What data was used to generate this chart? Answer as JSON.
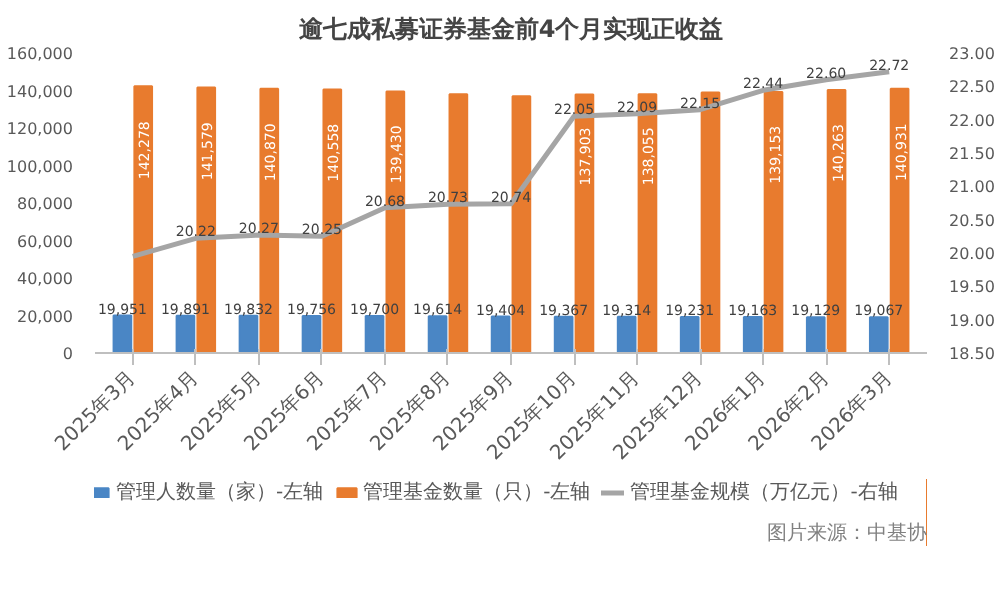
{
  "chart_data": {
    "type": "bar",
    "title": "逾七成私募证券基金前4个月实现正收益",
    "categories": [
      "2025年3月",
      "2025年4月",
      "2025年5月",
      "2025年6月",
      "2025年7月",
      "2025年8月",
      "2025年9月",
      "2025年10月",
      "2025年11月",
      "2025年12月",
      "2026年1月",
      "2026年2月",
      "2026年3月"
    ],
    "series": [
      {
        "name": "管理人数量（家）-左轴",
        "color": "#4a86c5",
        "values": [
          19951,
          19891,
          19832,
          19756,
          19700,
          19614,
          19404,
          19367,
          19314,
          19231,
          19163,
          19129,
          19067
        ],
        "value_labels": [
          "19,951",
          "19,891",
          "19,832",
          "19,756",
          "19,700",
          "19,614",
          "19,404",
          "19,367",
          "19,314",
          "19,231",
          "19,163",
          "19,129",
          "19,067"
        ]
      },
      {
        "name": "管理基金数量（只）-左轴",
        "color": "#e87b2e",
        "values": [
          142278,
          141579,
          140870,
          140558,
          139430,
          138000,
          137000,
          137903,
          138055,
          139000,
          139153,
          140263,
          140931
        ],
        "value_labels": [
          "142,278",
          "141,579",
          "140,870",
          "140,558",
          "139,430",
          null,
          null,
          "137,903",
          "138,055",
          null,
          "139,153",
          "140,263",
          "140,931"
        ]
      },
      {
        "name": "管理基金规模（万亿元）-右轴",
        "type": "line",
        "axis": "y2",
        "color": "#a5a5a5",
        "values": [
          19.95,
          20.22,
          20.27,
          20.25,
          20.68,
          20.73,
          20.74,
          22.05,
          22.09,
          22.15,
          22.44,
          22.6,
          22.72
        ],
        "value_labels": [
          null,
          "20.22",
          "20.27",
          "20.25",
          "20.68",
          "20.73",
          "20.74",
          "22.05",
          "22.09",
          "22.15",
          "22.44",
          "22.60",
          "22.72"
        ]
      }
    ],
    "ylim": [
      0,
      160000
    ],
    "yticks": [
      {
        "value": 0,
        "label": "0"
      },
      {
        "value": 20000,
        "label": "20,000"
      },
      {
        "value": 40000,
        "label": "40,000"
      },
      {
        "value": 60000,
        "label": "60,000"
      },
      {
        "value": 80000,
        "label": "80,000"
      },
      {
        "value": 100000,
        "label": "100,000"
      },
      {
        "value": 120000,
        "label": "120,000"
      },
      {
        "value": 140000,
        "label": "140,000"
      },
      {
        "value": 160000,
        "label": "160,000"
      }
    ],
    "y2lim": [
      18.5,
      23.0
    ],
    "y2ticks": [
      {
        "value": 18.5,
        "label": "18.50"
      },
      {
        "value": 19.0,
        "label": "19.00"
      },
      {
        "value": 19.5,
        "label": "19.50"
      },
      {
        "value": 20.0,
        "label": "20.00"
      },
      {
        "value": 20.5,
        "label": "20.50"
      },
      {
        "value": 21.0,
        "label": "21.00"
      },
      {
        "value": 21.5,
        "label": "21.50"
      },
      {
        "value": 22.0,
        "label": "22.00"
      },
      {
        "value": 22.5,
        "label": "22.50"
      },
      {
        "value": 23.0,
        "label": "23.00"
      }
    ],
    "legend": "bottom",
    "marker": "none",
    "line_style": "solid",
    "annotations": [
      "图片来源：中基协"
    ]
  }
}
